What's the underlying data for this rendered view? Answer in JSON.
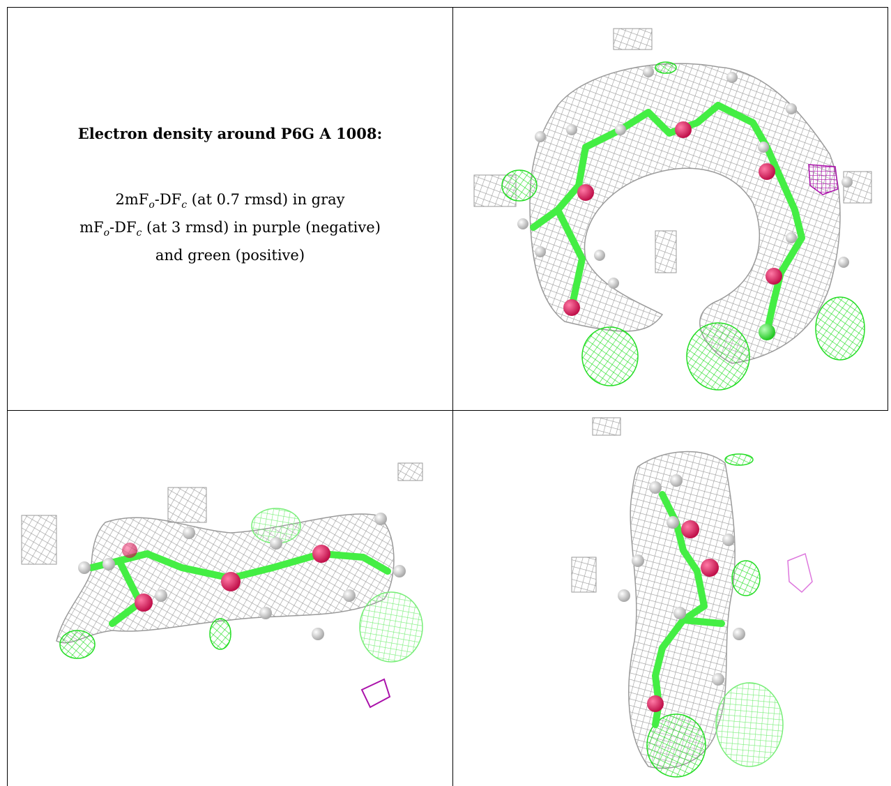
{
  "heading": "Electron density around P6G A 1008:",
  "legend": {
    "line1": {
      "pre": "2mF",
      "s1": "o",
      "mid": "-DF",
      "s2": "c",
      "post": " (at 0.7 rmsd) in gray"
    },
    "line2": {
      "pre": "mF",
      "s1": "o",
      "mid": "-DF",
      "s2": "c",
      "post": " (at 3 rmsd) in purple (negative)"
    },
    "line3": "and green (positive)"
  },
  "colors": {
    "mesh_2fofc": "#9a9a9a",
    "mesh_positive": "#22dd22",
    "mesh_negative": "#aa11aa",
    "carbon": "#44ee44",
    "oxygen": "#e0185a",
    "hydrogen": "#dcdcdc"
  },
  "views": [
    {
      "name": "ring view"
    },
    {
      "name": "side view"
    },
    {
      "name": "end view"
    }
  ]
}
